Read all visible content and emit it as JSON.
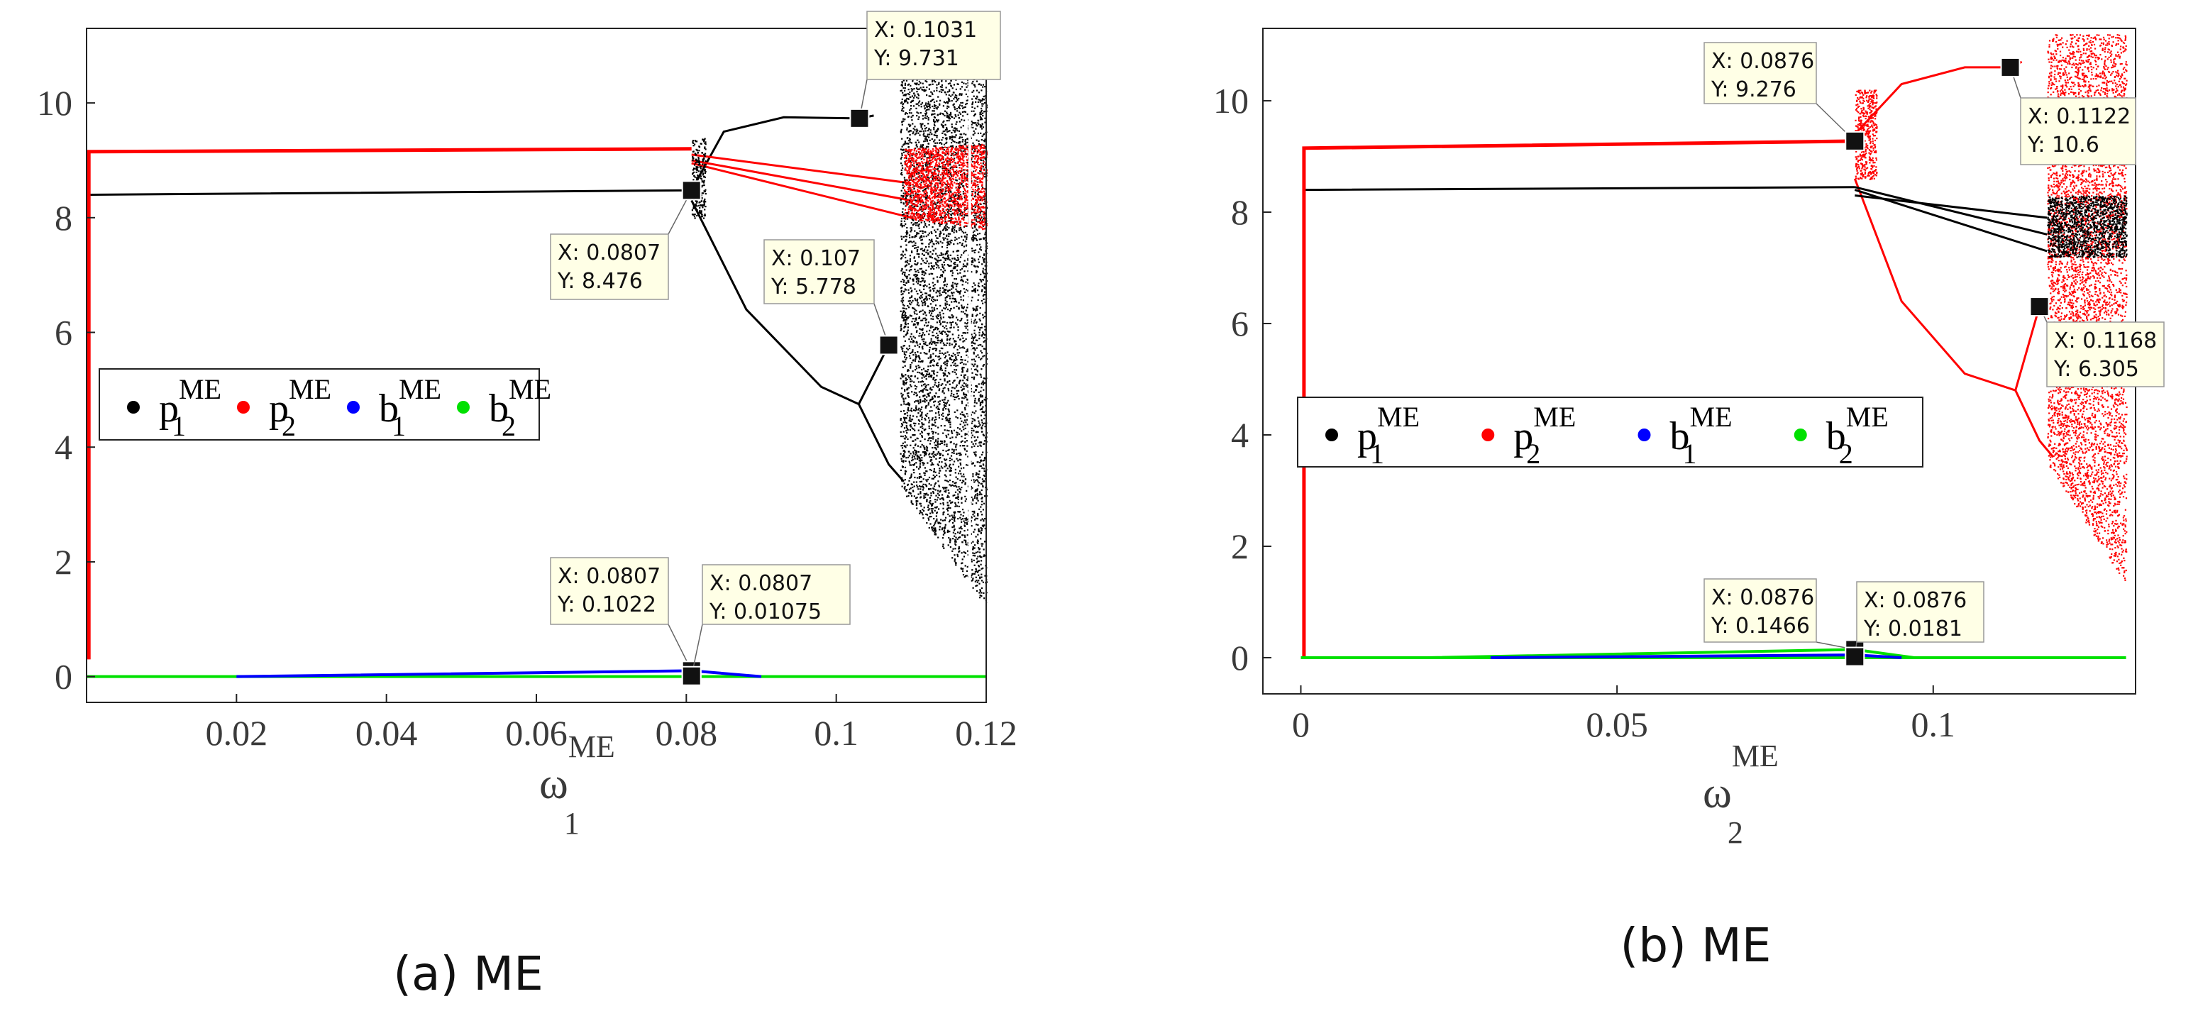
{
  "chart_data": [
    {
      "type": "scatter",
      "caption": "(a)  ME",
      "xlabel": "ω",
      "xlabel_sup": "ME",
      "xlabel_sub": "1",
      "xlim": [
        0,
        0.12
      ],
      "ylim": [
        -0.45,
        11.3
      ],
      "xticks": [
        0.02,
        0.04,
        0.06,
        0.08,
        0.1,
        0.12
      ],
      "xtick_labels": [
        "0.02",
        "0.04",
        "0.06",
        "0.08",
        "0.1",
        "0.12"
      ],
      "yticks": [
        0,
        2,
        4,
        6,
        8,
        10
      ],
      "ytick_labels": [
        "0",
        "2",
        "4",
        "6",
        "8",
        "10"
      ],
      "legend_position": "center-left",
      "series": [
        {
          "name": "p",
          "sup": "ME",
          "sub": "1",
          "color": "#000000"
        },
        {
          "name": "p",
          "sup": "ME",
          "sub": "2",
          "color": "#ff0000"
        },
        {
          "name": "b",
          "sup": "ME",
          "sub": "1",
          "color": "#0000ff"
        },
        {
          "name": "b",
          "sup": "ME",
          "sub": "2",
          "color": "#00e000"
        }
      ],
      "datatips": [
        {
          "x": 0.1031,
          "y": 9.731,
          "lines": [
            "X: 0.1031",
            "Y: 9.731"
          ]
        },
        {
          "x": 0.0807,
          "y": 8.476,
          "lines": [
            "X: 0.0807",
            "Y: 8.476"
          ]
        },
        {
          "x": 0.107,
          "y": 5.778,
          "lines": [
            "X: 0.107",
            "Y: 5.778"
          ]
        },
        {
          "x": 0.0807,
          "y": 0.1022,
          "lines": [
            "X: 0.0807",
            "Y: 0.1022"
          ]
        },
        {
          "x": 0.0807,
          "y": 0.01075,
          "lines": [
            "X: 0.0807",
            "Y: 0.01075"
          ]
        }
      ]
    },
    {
      "type": "scatter",
      "caption": "(b)  ME",
      "xlabel": "ω",
      "xlabel_sup": "ME",
      "xlabel_sub": "2",
      "xlim": [
        -0.006,
        0.132
      ],
      "ylim": [
        -0.65,
        11.3
      ],
      "xticks": [
        0,
        0.05,
        0.1
      ],
      "xtick_labels": [
        "0",
        "0.05",
        "0.1"
      ],
      "yticks": [
        0,
        2,
        4,
        6,
        8,
        10
      ],
      "ytick_labels": [
        "0",
        "2",
        "4",
        "6",
        "8",
        "10"
      ],
      "legend_position": "center-left",
      "series": [
        {
          "name": "p",
          "sup": "ME",
          "sub": "1",
          "color": "#000000"
        },
        {
          "name": "p",
          "sup": "ME",
          "sub": "2",
          "color": "#ff0000"
        },
        {
          "name": "b",
          "sup": "ME",
          "sub": "1",
          "color": "#0000ff"
        },
        {
          "name": "b",
          "sup": "ME",
          "sub": "2",
          "color": "#00e000"
        }
      ],
      "datatips": [
        {
          "x": 0.0876,
          "y": 9.276,
          "lines": [
            "X: 0.0876",
            "Y: 9.276"
          ]
        },
        {
          "x": 0.1122,
          "y": 10.6,
          "lines": [
            "X: 0.1122",
            "Y: 10.6"
          ]
        },
        {
          "x": 0.1168,
          "y": 6.305,
          "lines": [
            "X: 0.1168",
            "Y: 6.305"
          ]
        },
        {
          "x": 0.0876,
          "y": 0.1466,
          "lines": [
            "X: 0.0876",
            "Y: 0.1466"
          ]
        },
        {
          "x": 0.0876,
          "y": 0.0181,
          "lines": [
            "X: 0.0876",
            "Y: 0.0181"
          ]
        }
      ]
    }
  ]
}
